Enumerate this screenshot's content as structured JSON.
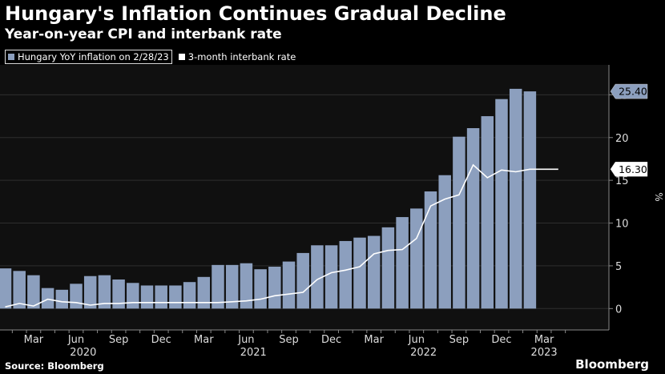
{
  "title": "Hungary's Inflation Continues Gradual Decline",
  "subtitle": "Year-on-year CPI and interbank rate",
  "source": "Source: Bloomberg",
  "brand": "Bloomberg",
  "colors": {
    "bar": "#8c9fbe",
    "line": "#ffffff",
    "background": "#000000",
    "plot_background": "#101010",
    "grid": "#2e2e2e"
  },
  "chart_data": {
    "type": "bar",
    "ylabel": "%",
    "ylim": [
      -2.5,
      28.5
    ],
    "yticks": [
      0,
      5,
      10,
      15,
      20,
      25
    ],
    "grid": true,
    "legend_position": "top-left",
    "x_ticks": [
      {
        "index": 2,
        "month": "Mar"
      },
      {
        "index": 5,
        "month": "Jun"
      },
      {
        "index": 8,
        "month": "Sep"
      },
      {
        "index": 11,
        "month": "Dec"
      },
      {
        "index": 14,
        "month": "Mar"
      },
      {
        "index": 17,
        "month": "Jun"
      },
      {
        "index": 20,
        "month": "Sep"
      },
      {
        "index": 23,
        "month": "Dec"
      },
      {
        "index": 26,
        "month": "Mar"
      },
      {
        "index": 29,
        "month": "Jun"
      },
      {
        "index": 32,
        "month": "Sep"
      },
      {
        "index": 35,
        "month": "Dec"
      },
      {
        "index": 38,
        "month": "Mar"
      }
    ],
    "year_labels": [
      {
        "index": 5.5,
        "label": "2020"
      },
      {
        "index": 17.5,
        "label": "2021"
      },
      {
        "index": 29.5,
        "label": "2022"
      },
      {
        "index": 38,
        "label": "2023"
      }
    ],
    "series": [
      {
        "name": "Hungary YoY inflation on 2/28/23",
        "type": "bar",
        "values": [
          4.7,
          4.4,
          3.9,
          2.4,
          2.2,
          2.9,
          3.8,
          3.9,
          3.4,
          3.0,
          2.7,
          2.7,
          2.7,
          3.1,
          3.7,
          5.1,
          5.1,
          5.3,
          4.6,
          4.9,
          5.5,
          6.5,
          7.4,
          7.4,
          7.9,
          8.3,
          8.5,
          9.5,
          10.7,
          11.7,
          13.7,
          15.6,
          20.1,
          21.1,
          22.5,
          24.5,
          25.7,
          25.4
        ],
        "label": "25.40"
      },
      {
        "name": "3-month interbank rate",
        "type": "line",
        "x": [
          0,
          1,
          2,
          3,
          4,
          5,
          6,
          7,
          8,
          9,
          10,
          11,
          12,
          13,
          14,
          15,
          16,
          17,
          18,
          19,
          20,
          21,
          22,
          23,
          24,
          25,
          26,
          27,
          28,
          29,
          30,
          31,
          32,
          33,
          34,
          35,
          36,
          37,
          38,
          39
        ],
        "values": [
          0.2,
          0.6,
          0.3,
          1.1,
          0.8,
          0.7,
          0.4,
          0.6,
          0.6,
          0.7,
          0.7,
          0.7,
          0.7,
          0.7,
          0.7,
          0.7,
          0.8,
          0.9,
          1.1,
          1.5,
          1.7,
          1.9,
          3.4,
          4.2,
          4.5,
          4.9,
          6.4,
          6.8,
          6.9,
          8.2,
          12.0,
          12.8,
          13.3,
          16.8,
          15.3,
          16.2,
          16.0,
          16.3,
          16.3,
          16.3
        ],
        "label": "16.30"
      }
    ]
  }
}
